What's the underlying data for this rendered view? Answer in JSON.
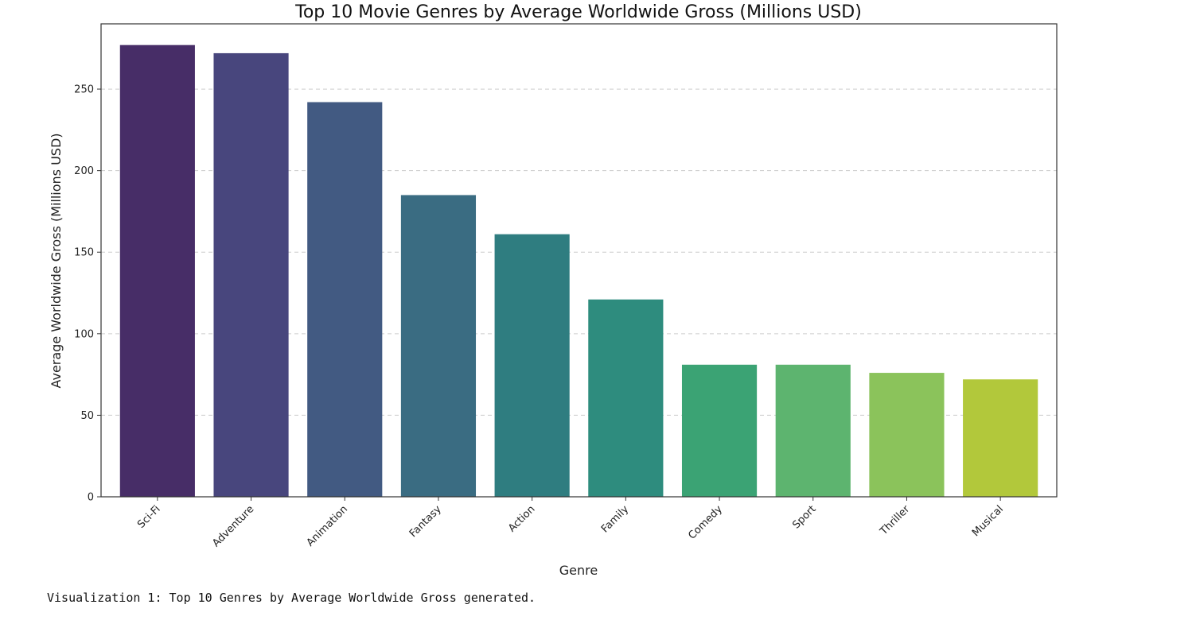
{
  "chart_data": {
    "type": "bar",
    "title": "Top 10 Movie Genres by Average Worldwide Gross (Millions USD)",
    "xlabel": "Genre",
    "ylabel": "Average Worldwide Gross (Millions USD)",
    "categories": [
      "Sci-Fi",
      "Adventure",
      "Animation",
      "Fantasy",
      "Action",
      "Family",
      "Comedy",
      "Sport",
      "Thriller",
      "Musical"
    ],
    "values": [
      277,
      272,
      242,
      185,
      161,
      121,
      81,
      81,
      76,
      72
    ],
    "ylim": [
      0,
      290
    ],
    "yticks": [
      0,
      50,
      100,
      150,
      200,
      250
    ],
    "grid": "y-dashed",
    "colors": [
      "#472d67",
      "#48467d",
      "#425a82",
      "#3a6c82",
      "#2f7d80",
      "#2e8c7e",
      "#3ba374",
      "#5db46f",
      "#8bc35b",
      "#b2c83b"
    ]
  },
  "output": {
    "text": "Visualization 1: Top 10 Genres by Average Worldwide Gross generated."
  }
}
